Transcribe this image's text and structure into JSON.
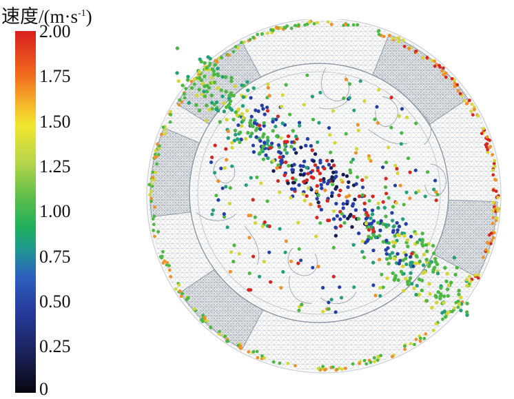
{
  "legend": {
    "title_prefix": "速度/(m·s",
    "title_sup": "-1",
    "title_suffix": ")",
    "ticks": [
      "2.00",
      "1.75",
      "1.50",
      "1.25",
      "1.00",
      "0.75",
      "0.50",
      "0.25",
      "0"
    ],
    "min": 0,
    "max": 2.0
  },
  "colors": {
    "red": "#d8261e",
    "orange": "#f0902a",
    "yellow": "#d4d634",
    "green": "#4cb842",
    "teal": "#23a07a",
    "blue": "#2440a8",
    "navy": "#141e50",
    "mesh": "#9aa3ad"
  }
}
